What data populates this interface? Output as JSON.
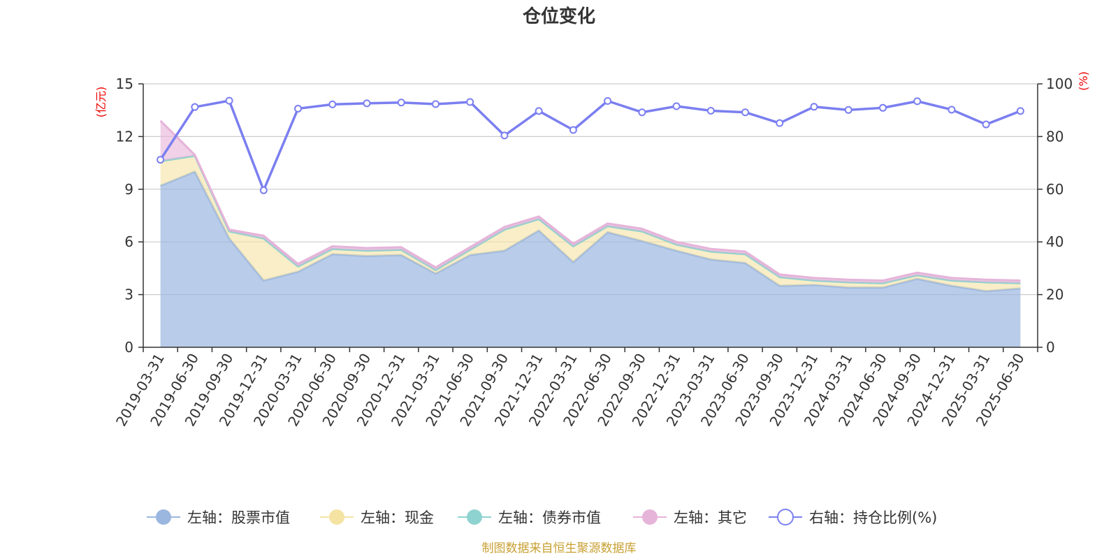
{
  "chart_data": {
    "type": "area",
    "title": "仓位变化",
    "left_axis": {
      "unit": "(亿元)",
      "range": [
        0,
        15
      ],
      "ticks": [
        "0",
        "3",
        "6",
        "9",
        "12",
        "15"
      ]
    },
    "right_axis": {
      "unit": "(%)",
      "range": [
        0,
        100
      ],
      "ticks": [
        "0",
        "20",
        "40",
        "60",
        "80",
        "100"
      ]
    },
    "unit_color": "#ee0000",
    "categories": [
      "2019-03-31",
      "2019-06-30",
      "2019-09-30",
      "2019-12-31",
      "2020-03-31",
      "2020-06-30",
      "2020-09-30",
      "2020-12-31",
      "2021-03-31",
      "2021-06-30",
      "2021-09-30",
      "2021-12-31",
      "2022-03-31",
      "2022-06-30",
      "2022-09-30",
      "2022-12-31",
      "2023-03-31",
      "2023-06-30",
      "2023-09-30",
      "2023-12-31",
      "2024-03-31",
      "2024-06-30",
      "2024-09-30",
      "2024-12-31",
      "2025-03-31",
      "2025-06-30"
    ],
    "series": [
      {
        "name": "左轴：股票市值",
        "axis": "left",
        "type": "area",
        "color": "#9bb7e0",
        "values": [
          9.2,
          10.0,
          6.2,
          3.8,
          4.3,
          5.3,
          5.2,
          5.25,
          4.2,
          5.25,
          5.5,
          6.65,
          4.85,
          6.55,
          6.05,
          5.5,
          5.0,
          4.8,
          3.5,
          3.55,
          3.4,
          3.4,
          3.9,
          3.5,
          3.2,
          3.35
        ]
      },
      {
        "name": "左轴：现金",
        "axis": "left",
        "type": "area",
        "color": "#f5e3a3",
        "values": [
          1.4,
          0.9,
          0.4,
          2.4,
          0.3,
          0.3,
          0.3,
          0.3,
          0.2,
          0.3,
          1.2,
          0.65,
          0.9,
          0.35,
          0.55,
          0.35,
          0.45,
          0.5,
          0.5,
          0.25,
          0.3,
          0.25,
          0.2,
          0.3,
          0.5,
          0.3
        ]
      },
      {
        "name": "左轴：债券市值",
        "axis": "left",
        "type": "area",
        "color": "#8fd3d0",
        "values": [
          0,
          0,
          0,
          0,
          0,
          0,
          0,
          0,
          0,
          0,
          0,
          0,
          0,
          0,
          0,
          0,
          0,
          0,
          0,
          0,
          0,
          0,
          0,
          0,
          0,
          0
        ]
      },
      {
        "name": "左轴：其它",
        "axis": "left",
        "type": "area",
        "color": "#e6b3d9",
        "values": [
          2.3,
          0.05,
          0.1,
          0.15,
          0.15,
          0.15,
          0.15,
          0.15,
          0.15,
          0.15,
          0.15,
          0.15,
          0.15,
          0.15,
          0.15,
          0.15,
          0.15,
          0.15,
          0.15,
          0.15,
          0.15,
          0.15,
          0.15,
          0.15,
          0.15,
          0.15
        ]
      },
      {
        "name": "右轴：持仓比例(%)",
        "axis": "right",
        "type": "line",
        "color": "#7b7ff0",
        "values": [
          71.2,
          91.2,
          93.6,
          59.6,
          90.6,
          92.2,
          92.6,
          92.9,
          92.3,
          93.1,
          80.4,
          89.7,
          82.5,
          93.5,
          89.2,
          91.5,
          89.8,
          89.2,
          85.1,
          91.3,
          90.1,
          90.9,
          93.4,
          90.2,
          84.6,
          89.7
        ]
      }
    ],
    "legend_position": "bottom",
    "grid": true
  },
  "footer": "制图数据来自恒生聚源数据库",
  "footer_color": "#c8a032"
}
